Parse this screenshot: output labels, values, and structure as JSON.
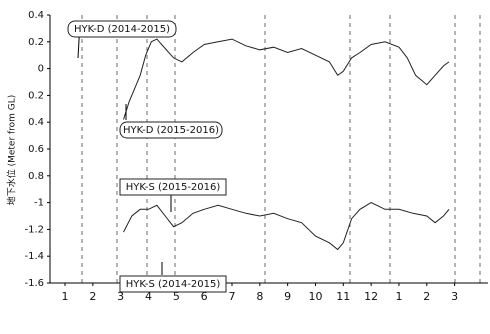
{
  "chart_data": {
    "type": "line",
    "y_label": "地下水位 (Meter from GL)",
    "xlim": [
      0.46,
      16.2
    ],
    "xticks": [
      1,
      2,
      3,
      4,
      5,
      6,
      7,
      8,
      9,
      10,
      11,
      12,
      {
        "value": 13,
        "label": "1"
      },
      {
        "value": 14,
        "label": "2"
      },
      {
        "value": 15,
        "label": "3"
      }
    ],
    "ylim": [
      -1.6,
      0.4
    ],
    "yticks": [
      0.4,
      0.2,
      0,
      {
        "value": -0.2,
        "label": "0.2"
      },
      {
        "value": -0.4,
        "label": "0.4"
      },
      {
        "value": -0.6,
        "label": "0.6"
      },
      {
        "value": -0.8,
        "label": "0.8"
      },
      -1,
      -1.2,
      -1.4,
      -1.6
    ],
    "series": [
      {
        "color": "#222",
        "x": [
          3.1,
          3.3,
          3.5,
          3.7,
          3.9,
          4.1,
          4.3,
          4.6,
          4.9,
          5.2,
          5.6,
          6,
          6.5,
          7,
          7.5,
          8,
          8.5,
          9,
          9.5,
          10,
          10.5,
          10.8,
          11,
          11.3,
          11.6,
          12,
          12.5,
          13,
          13.3,
          13.6,
          14,
          14.3,
          14.6,
          14.8
        ],
        "values": [
          -0.38,
          -0.25,
          -0.15,
          -0.05,
          0.1,
          0.2,
          0.22,
          0.15,
          0.08,
          0.05,
          0.12,
          0.18,
          0.2,
          0.22,
          0.17,
          0.14,
          0.16,
          0.12,
          0.15,
          0.1,
          0.05,
          -0.05,
          -0.02,
          0.08,
          0.12,
          0.18,
          0.2,
          0.16,
          0.08,
          -0.05,
          -0.12,
          -0.05,
          0.02,
          0.05
        ]
      },
      {
        "color": "#222",
        "x": [
          3.1,
          3.4,
          3.7,
          4,
          4.3,
          4.6,
          4.9,
          5.2,
          5.6,
          6,
          6.5,
          7,
          7.5,
          8,
          8.5,
          9,
          9.5,
          10,
          10.5,
          10.8,
          11,
          11.3,
          11.6,
          12,
          12.5,
          13,
          13.5,
          14,
          14.3,
          14.6,
          14.8
        ],
        "values": [
          -1.22,
          -1.1,
          -1.05,
          -1.05,
          -1.02,
          -1.1,
          -1.18,
          -1.15,
          -1.08,
          -1.05,
          -1.02,
          -1.05,
          -1.08,
          -1.1,
          -1.08,
          -1.12,
          -1.15,
          -1.25,
          -1.3,
          -1.35,
          -1.3,
          -1.12,
          -1.05,
          -1.0,
          -1.05,
          -1.05,
          -1.08,
          -1.1,
          -1.15,
          -1.1,
          -1.05
        ]
      }
    ],
    "annotations": [
      "HYK-D (2014-2015)",
      "HYK-D (2015-2016)",
      "HYK-S (2015-2016)",
      "HYK-S (2014-2015)"
    ]
  }
}
